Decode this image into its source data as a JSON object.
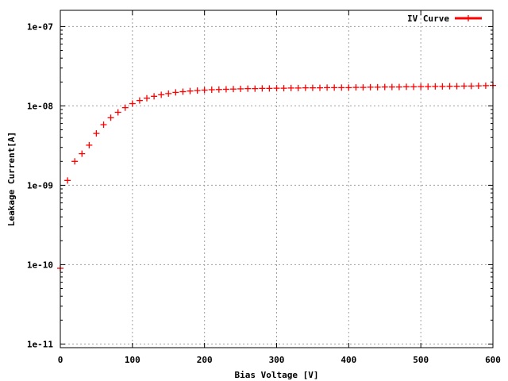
{
  "chart_data": {
    "type": "scatter",
    "title": "",
    "xlabel": "Bias Voltage [V]",
    "ylabel": "Leakage Current[A]",
    "xlim": [
      0,
      600
    ],
    "ylim": [
      9e-12,
      1.6e-07
    ],
    "yscale": "log",
    "grid": true,
    "legend_position": "top-right",
    "x_ticks": [
      0,
      100,
      200,
      300,
      400,
      500,
      600
    ],
    "x_tick_labels": [
      "0",
      "100",
      "200",
      "300",
      "400",
      "500",
      "600"
    ],
    "y_ticks": [
      1e-11,
      1e-10,
      1e-09,
      1e-08,
      1e-07
    ],
    "y_tick_labels": [
      "1e-11",
      "1e-10",
      "1e-09",
      "1e-08",
      "1e-07"
    ],
    "series": [
      {
        "name": "IV Curve",
        "color": "#ff0000",
        "marker": "plus",
        "x": [
          0,
          10,
          20,
          30,
          40,
          50,
          60,
          70,
          80,
          90,
          100,
          110,
          120,
          130,
          140,
          150,
          160,
          170,
          180,
          190,
          200,
          210,
          220,
          230,
          240,
          250,
          260,
          270,
          280,
          290,
          300,
          310,
          320,
          330,
          340,
          350,
          360,
          370,
          380,
          390,
          400,
          410,
          420,
          430,
          440,
          450,
          460,
          470,
          480,
          490,
          500,
          510,
          520,
          530,
          540,
          550,
          560,
          570,
          580,
          590,
          600
        ],
        "y": [
          9e-11,
          1.15e-09,
          2e-09,
          2.5e-09,
          3.2e-09,
          4.5e-09,
          5.8e-09,
          7.1e-09,
          8.3e-09,
          9.5e-09,
          1.07e-08,
          1.17e-08,
          1.25e-08,
          1.32e-08,
          1.38e-08,
          1.43e-08,
          1.48e-08,
          1.51e-08,
          1.54e-08,
          1.56e-08,
          1.58e-08,
          1.6e-08,
          1.61e-08,
          1.62e-08,
          1.63e-08,
          1.64e-08,
          1.65e-08,
          1.65e-08,
          1.66e-08,
          1.66e-08,
          1.67e-08,
          1.67e-08,
          1.68e-08,
          1.68e-08,
          1.69e-08,
          1.69e-08,
          1.69e-08,
          1.7e-08,
          1.7e-08,
          1.7e-08,
          1.7e-08,
          1.71e-08,
          1.71e-08,
          1.72e-08,
          1.72e-08,
          1.73e-08,
          1.73e-08,
          1.73e-08,
          1.74e-08,
          1.74e-08,
          1.75e-08,
          1.75e-08,
          1.76e-08,
          1.76e-08,
          1.77e-08,
          1.77e-08,
          1.78e-08,
          1.78e-08,
          1.79e-08,
          1.8e-08,
          1.81e-08
        ]
      }
    ]
  }
}
